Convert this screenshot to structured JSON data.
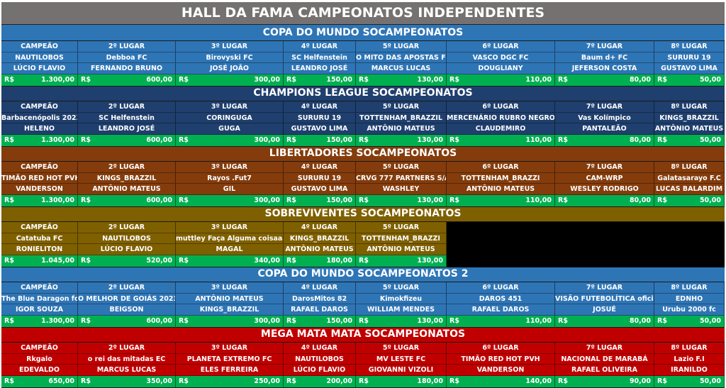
{
  "title": "HALL DA FAMA CAMPEONATOS INDEPENDENTES",
  "currency": "R$",
  "colors": {
    "title": "#767171",
    "prize": "#00b050"
  },
  "sections": [
    {
      "name": "COPA DO MUNDO SOCAMPEONATOS",
      "color": "#2e75b6",
      "places": [
        "CAMPEÃO",
        "2º LUGAR",
        "3º LUGAR",
        "4º LUGAR",
        "5º LUGAR",
        "6º LUGAR",
        "7º LUGAR",
        "8º LUGAR"
      ],
      "teams": [
        "NAUTILOBOS",
        "Debboa FC",
        "Birovyski FC",
        "SC Helfenstein",
        "O MITO DAS APOSTAS FC",
        "VASCO DGC FC",
        "Baum d+ FC",
        "SURURU 19"
      ],
      "players": [
        "LÚCIO FLAVIO",
        "FERNANDO BRUNO",
        "JOSÉ JOÃO",
        "LEANDRO JOSÉ",
        "MARCUS LUCAS",
        "DOUGLIANY",
        "JEFERSON COSTA",
        "GUSTAVO LIMA"
      ],
      "prizes": [
        "1.300,00",
        "600,00",
        "300,00",
        "150,00",
        "130,00",
        "110,00",
        "80,00",
        "50,00"
      ]
    },
    {
      "name": "CHAMPIONS LEAGUE SOCAMPEONATOS",
      "color": "#1f3f6e",
      "places": [
        "CAMPEÃO",
        "2º LUGAR",
        "3º LUGAR",
        "4º LUGAR",
        "5º LUGAR",
        "6º LUGAR",
        "7º LUGAR",
        "8º LUGAR"
      ],
      "teams": [
        "Barbacenópolis 2023",
        "SC Helfenstein",
        "CORINGUGA",
        "SURURU 19",
        "TOTTENHAM_BRAZZIL",
        "MERCENÁRIO RUBRO NEGRO",
        "Vas Kolímpico",
        "KINGS_BRAZZIL"
      ],
      "players": [
        "HELENO",
        "LEANDRO JOSÉ",
        "GUGA",
        "GUSTAVO LIMA",
        "ANTÔNIO MATEUS",
        "CLAUDEMIRO",
        "PANTALEÃO",
        "ANTÔNIO MATEUS"
      ],
      "prizes": [
        "1.300,00",
        "600,00",
        "300,00",
        "150,00",
        "130,00",
        "110,00",
        "80,00",
        "50,00"
      ]
    },
    {
      "name": "LIBERTADORES SOCAMPEONATOS",
      "color": "#843c0c",
      "places": [
        "CAMPEÃO",
        "2º LUGAR",
        "3º LUGAR",
        "4º LUGAR",
        "5º LUGAR",
        "6º LUGAR",
        "7º LUGAR",
        "8º LUGAR"
      ],
      "teams": [
        "TIMÃO RED HOT PVH",
        "KINGS_BRAZZIL",
        "Rayos .Fut7",
        "SURURU 19",
        "CRVG 777 PARTNERS S/A",
        "TOTTENHAM_BRAZZI",
        "CAM-WRP",
        "Galatasarayo F.C"
      ],
      "players": [
        "VANDERSON",
        "ANTÔNIO MATEUS",
        "GIL",
        "GUSTAVO LIMA",
        "WASHLEY",
        "ANTÔNIO MATEUS",
        "WESLEY RODRIGO",
        "LUCAS BALARDIM"
      ],
      "prizes": [
        "1.300,00",
        "600,00",
        "300,00",
        "150,00",
        "130,00",
        "110,00",
        "80,00",
        "50,00"
      ]
    },
    {
      "name": "SOBREVIVENTES SOCAMPEONATOS",
      "color": "#7f6000",
      "places": [
        "CAMPEÃO",
        "2º LUGAR",
        "3º LUGAR",
        "4º LUGAR",
        "5º LUGAR"
      ],
      "teams": [
        "Catatuba FC",
        "NAUTILOBOS",
        "muttley Faça Alguma coisaaa",
        "KINGS_BRAZZIL",
        "TOTTENHAM_BRAZZI"
      ],
      "players": [
        "RONIELITON",
        "LÚCIO FLAVIO",
        "MAGAL",
        "ANTÔNIO MATEUS",
        "ANTÔNIO MATEUS"
      ],
      "prizes": [
        "1.045,00",
        "520,00",
        "340,00",
        "180,00",
        "130,00"
      ]
    },
    {
      "name": "COPA DO MUNDO SOCAMPEONATOS 2",
      "color": "#2e75b6",
      "places": [
        "CAMPEÃO",
        "2º LUGAR",
        "3º LUGAR",
        "4º LUGAR",
        "5º LUGAR",
        "6º LUGAR",
        "7º LUGAR",
        "8º LUGAR"
      ],
      "teams": [
        "The Blue Daragon fc",
        "O MELHOR DE GOIÁS 2023",
        "ANTÔNIO MATEUS",
        "DarosMitos 82",
        "Kimokfizeu",
        "DAROS 451",
        "VISÃO FUTEBOLÍTICA oficial",
        "EDNHO"
      ],
      "players": [
        "IGOR SOUZA",
        "BEIGSON",
        "KINGS_BRAZZIL",
        "RAFAEL DAROS",
        "WILLIAM MENDES",
        "RAFAEL DAROS",
        "JOSUÉ",
        "Urubu 2000 fc"
      ],
      "prizes": [
        "1.300,00",
        "600,00",
        "300,00",
        "150,00",
        "130,00",
        "110,00",
        "80,00",
        "50,00"
      ]
    },
    {
      "name": "MEGA MATA MATA SOCAMPEONATOS",
      "color": "#c00000",
      "places": [
        "CAMPEÃO",
        "2º LUGAR",
        "3º LUGAR",
        "4º LUGAR",
        "5º LUGAR",
        "6º LUGAR",
        "7º LUGAR",
        "8º LUGAR"
      ],
      "teams": [
        "Rkgalo",
        "o rei das mitadas EC",
        "PLANETA EXTREMO FC",
        "NAUTILOBOS",
        "MV LESTE FC",
        "TIMÃO RED HOT PVH",
        "NACIONAL DE MARABÁ",
        "Lazio F.I"
      ],
      "players": [
        "EDEVALDO",
        "MARCUS LUCAS",
        "ELES FERREIRA",
        "LÚCIO FLAVIO",
        "GIOVANNI VIZOLI",
        "VANDERSON",
        "RAFAEL OLIVEIRA",
        "IRANILDO"
      ],
      "prizes": [
        "650,00",
        "350,00",
        "250,00",
        "200,00",
        "180,00",
        "140,00",
        "90,00",
        "50,00"
      ]
    }
  ]
}
